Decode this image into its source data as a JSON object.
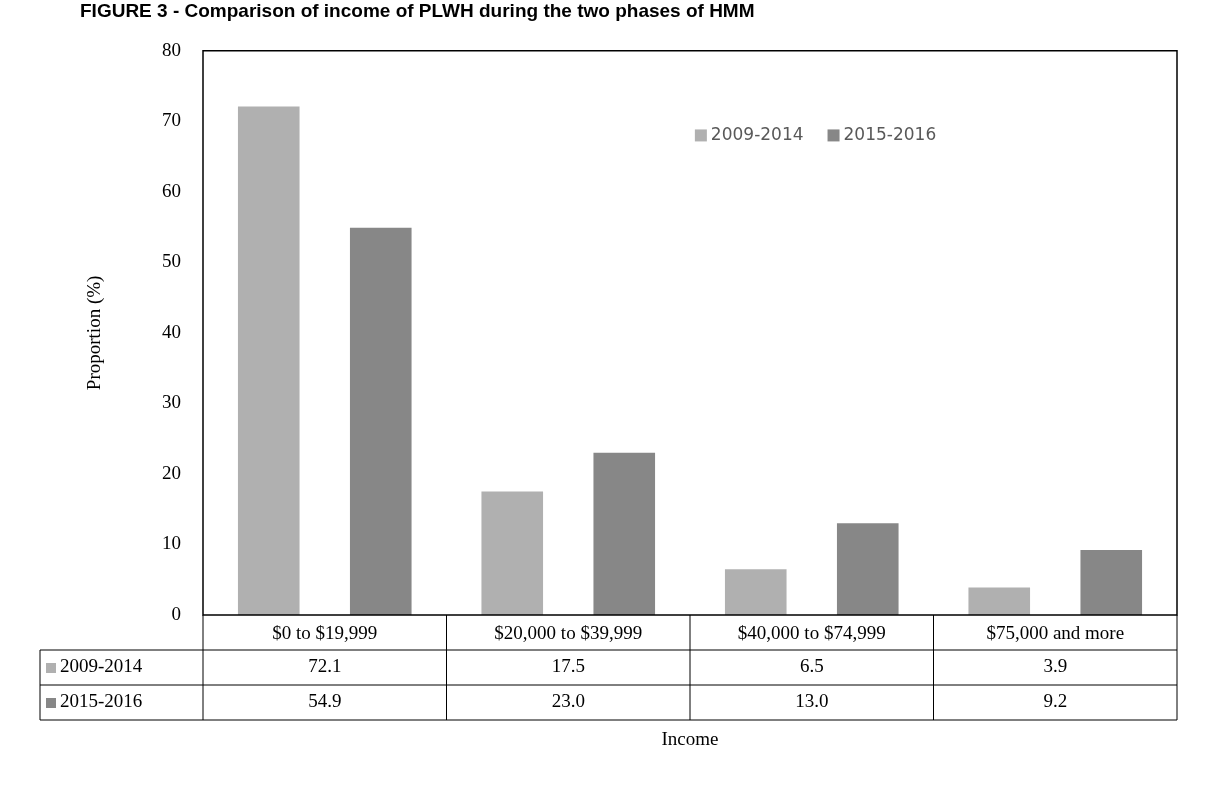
{
  "chart_data": {
    "type": "bar",
    "title": "FIGURE 3 - Comparison of income of PLWH during the two phases of HMM",
    "xlabel": "Income",
    "ylabel": "Proportion (%)",
    "categories": [
      "$0 to $19,999",
      "$20,000 to $39,999",
      "$40,000 to $74,999",
      "$75,000 and more"
    ],
    "series": [
      {
        "name": "2009-2014",
        "color": "#b0b0b0",
        "values": [
          72.1,
          17.5,
          6.5,
          3.9
        ],
        "value_labels": [
          "72.1",
          "17.5",
          "6.5",
          "3.9"
        ]
      },
      {
        "name": "2015-2016",
        "color": "#878787",
        "values": [
          54.9,
          23.0,
          13.0,
          9.2
        ],
        "value_labels": [
          "54.9",
          "23.0",
          "13.0",
          "9.2"
        ]
      }
    ],
    "ylim": [
      0,
      80
    ],
    "yticks": [
      0,
      10,
      20,
      30,
      40,
      50,
      60,
      70,
      80
    ],
    "grid": false,
    "legend": "top right"
  }
}
